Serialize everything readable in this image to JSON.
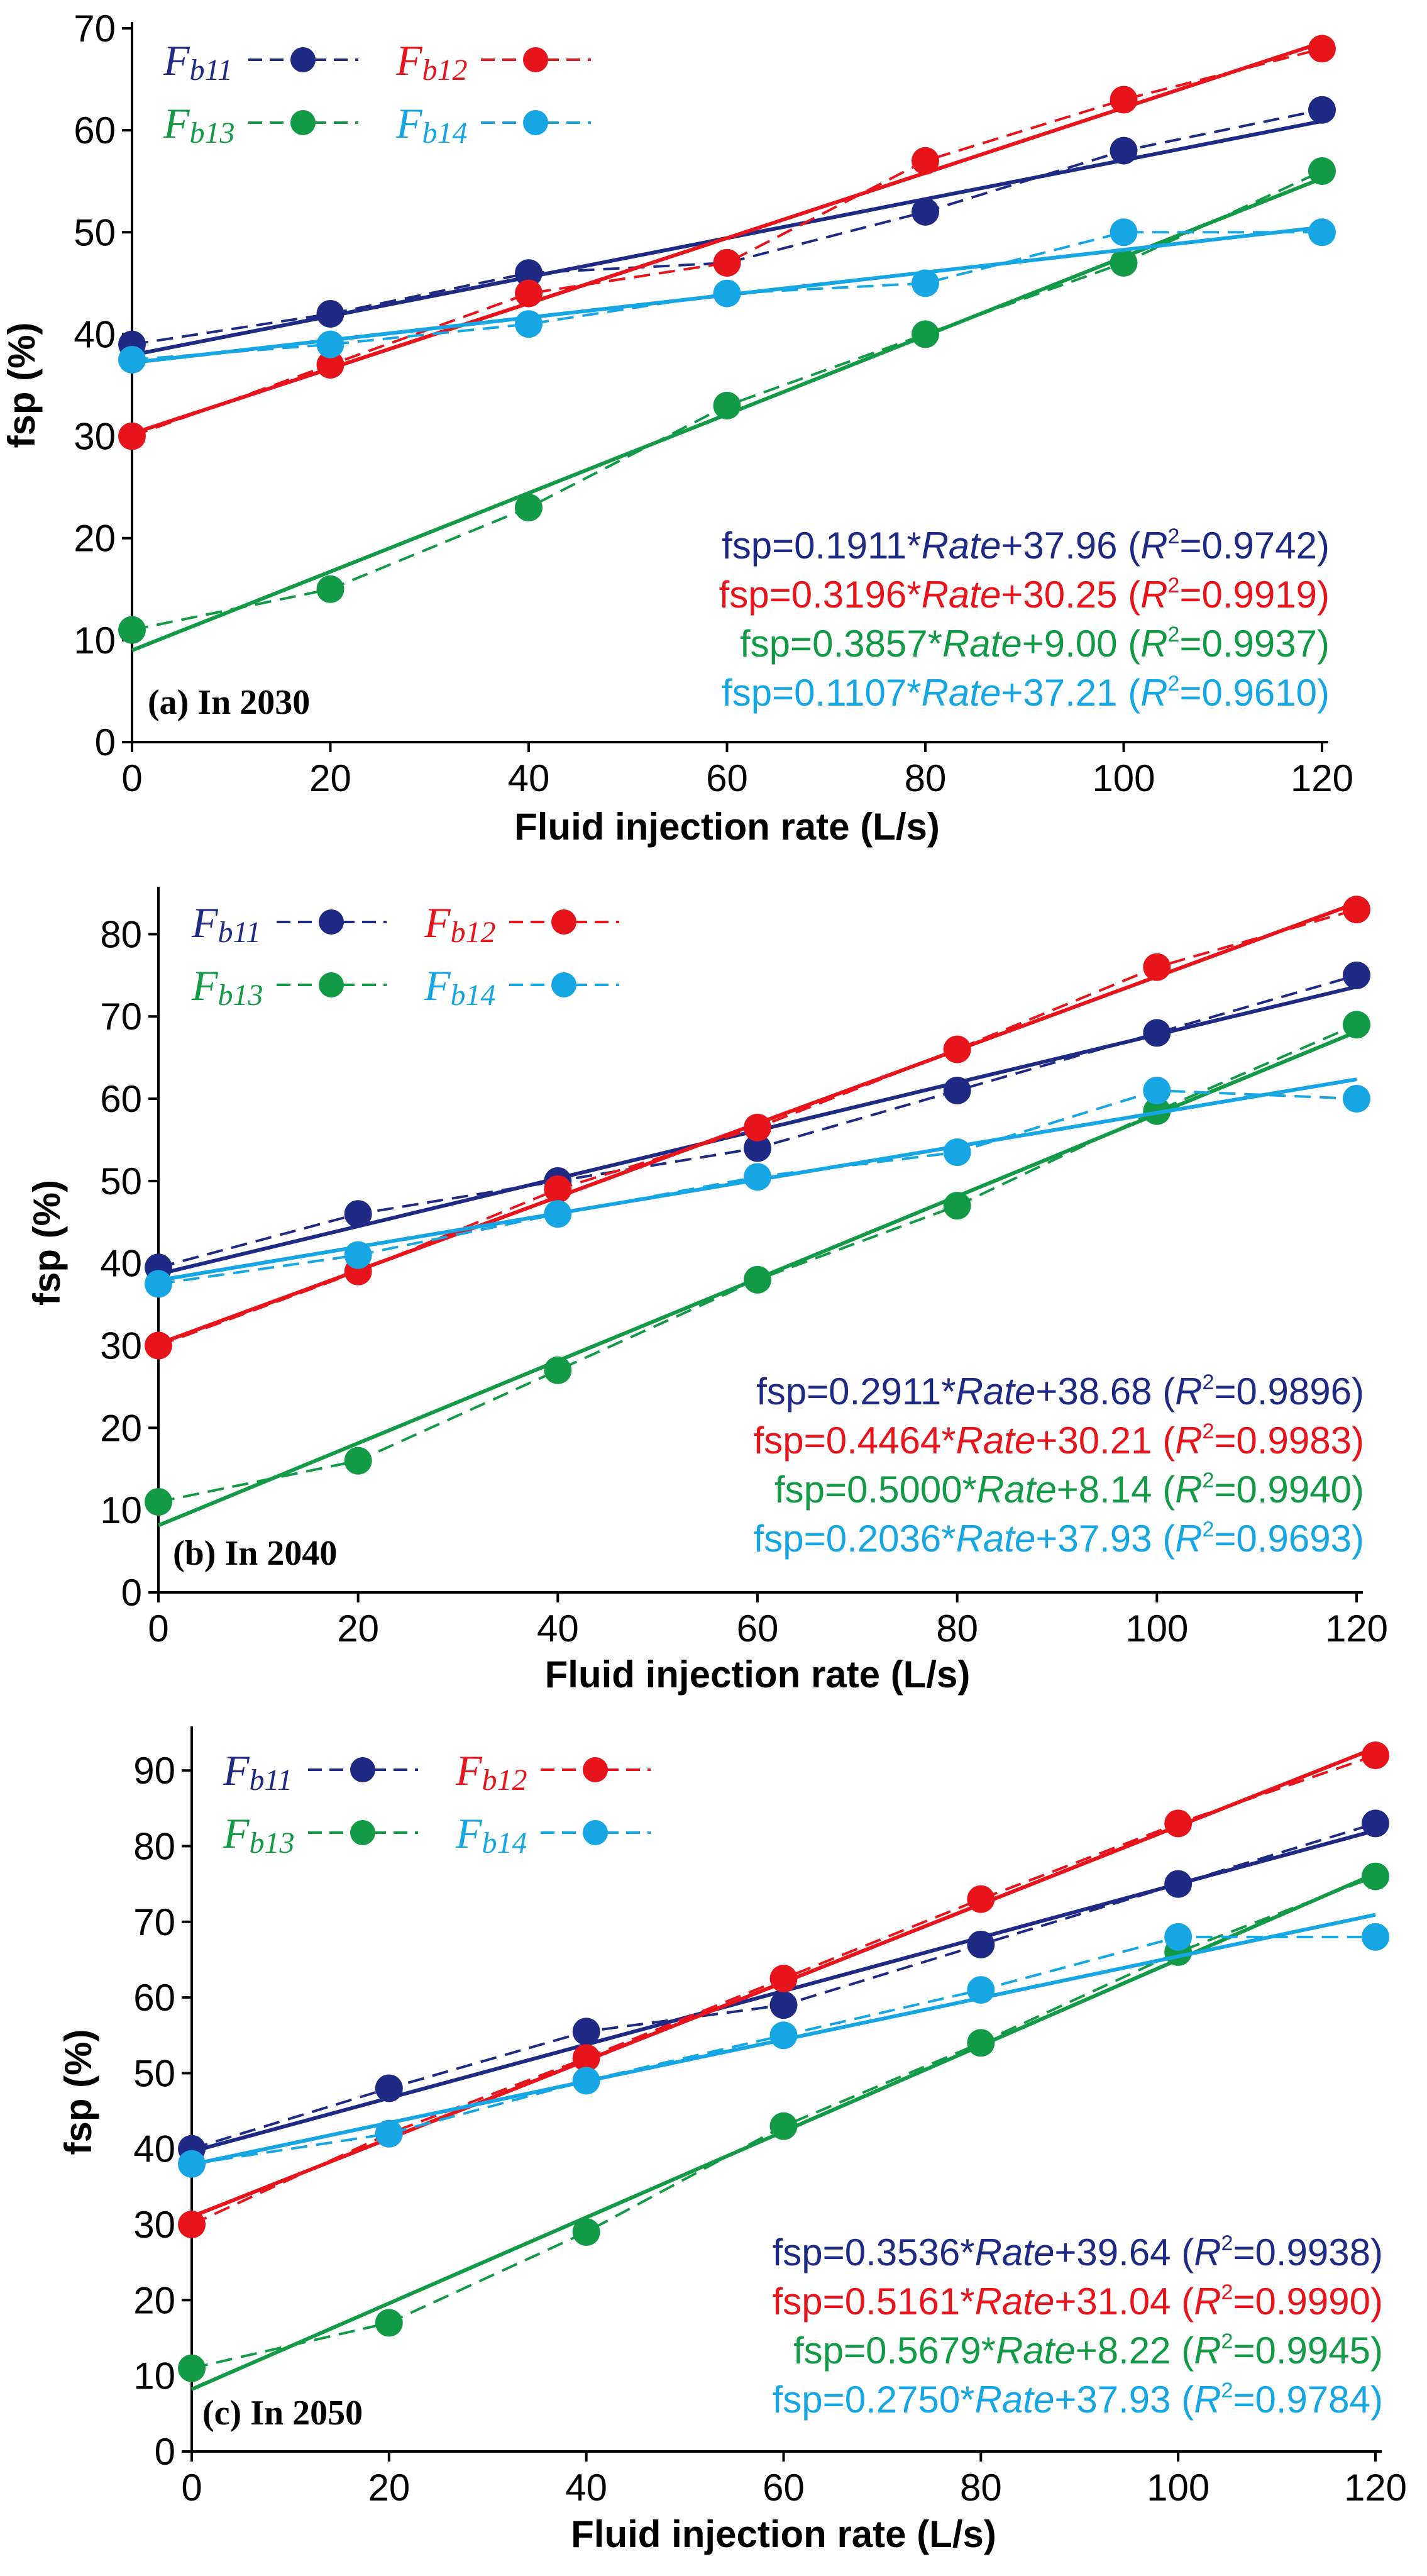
{
  "chart_data": [
    {
      "type": "line",
      "title": "",
      "panel_label": "(a) In 2030",
      "xlabel": "Fluid injection rate (L/s)",
      "ylabel": "fsp (%)",
      "xlim": [
        0,
        120
      ],
      "ylim": [
        0,
        70
      ],
      "x_ticks": [
        0,
        20,
        40,
        60,
        80,
        100,
        120
      ],
      "y_ticks": [
        0,
        10,
        20,
        30,
        40,
        50,
        60,
        70
      ],
      "x": [
        0,
        20,
        40,
        60,
        80,
        100,
        120
      ],
      "series": [
        {
          "name": "Fb11",
          "sub": "b11",
          "color": "#1f2a85",
          "values": [
            39,
            42,
            46,
            47,
            52,
            58,
            62
          ],
          "fit": {
            "slope": 0.1911,
            "intercept": 37.96
          },
          "equation": {
            "slope": "0.1911",
            "intercept": "37.96",
            "r2": "0.9742"
          }
        },
        {
          "name": "Fb12",
          "sub": "b12",
          "color": "#e8141c",
          "values": [
            30,
            37,
            44,
            47,
            57,
            63,
            68
          ],
          "fit": {
            "slope": 0.3196,
            "intercept": 30.25
          },
          "equation": {
            "slope": "0.3196",
            "intercept": "30.25",
            "r2": "0.9919"
          }
        },
        {
          "name": "Fb13",
          "sub": "b13",
          "color": "#139a46",
          "values": [
            11,
            15,
            23,
            33,
            40,
            47,
            56
          ],
          "fit": {
            "slope": 0.3857,
            "intercept": 9.0
          },
          "equation": {
            "slope": "0.3857",
            "intercept": "9.00",
            "r2": "0.9937"
          }
        },
        {
          "name": "Fb14",
          "sub": "b14",
          "color": "#16a6e3",
          "values": [
            37.5,
            39,
            41,
            44,
            45,
            50,
            50
          ],
          "fit": {
            "slope": 0.1107,
            "intercept": 37.21
          },
          "equation": {
            "slope": "0.1107",
            "intercept": "37.21",
            "r2": "0.9610"
          }
        }
      ]
    },
    {
      "type": "line",
      "title": "",
      "panel_label": "(b) In 2040",
      "xlabel": "Fluid injection rate (L/s)",
      "ylabel": "fsp (%)",
      "xlim": [
        0,
        120
      ],
      "ylim": [
        0,
        85
      ],
      "x_ticks": [
        0,
        20,
        40,
        60,
        80,
        100,
        120
      ],
      "y_ticks": [
        0,
        10,
        20,
        30,
        40,
        50,
        60,
        70,
        80
      ],
      "x": [
        0,
        20,
        40,
        60,
        80,
        100,
        120
      ],
      "series": [
        {
          "name": "Fb11",
          "sub": "b11",
          "color": "#1f2a85",
          "values": [
            39.5,
            46,
            50,
            54,
            61,
            68,
            75
          ],
          "fit": {
            "slope": 0.2911,
            "intercept": 38.68
          },
          "equation": {
            "slope": "0.2911",
            "intercept": "38.68",
            "r2": "0.9896"
          }
        },
        {
          "name": "Fb12",
          "sub": "b12",
          "color": "#e8141c",
          "values": [
            30,
            39,
            49,
            56.5,
            66,
            76,
            83
          ],
          "fit": {
            "slope": 0.4464,
            "intercept": 30.21
          },
          "equation": {
            "slope": "0.4464",
            "intercept": "30.21",
            "r2": "0.9983"
          }
        },
        {
          "name": "Fb13",
          "sub": "b13",
          "color": "#139a46",
          "values": [
            11,
            16,
            27,
            38,
            47,
            58.5,
            69
          ],
          "fit": {
            "slope": 0.5,
            "intercept": 8.14
          },
          "equation": {
            "slope": "0.5000",
            "intercept": "8.14",
            "r2": "0.9940"
          }
        },
        {
          "name": "Fb14",
          "sub": "b14",
          "color": "#16a6e3",
          "values": [
            37.5,
            41,
            46,
            50.5,
            53.5,
            61,
            60
          ],
          "fit": {
            "slope": 0.2036,
            "intercept": 37.93
          },
          "equation": {
            "slope": "0.2036",
            "intercept": "37.93",
            "r2": "0.9693"
          }
        }
      ]
    },
    {
      "type": "line",
      "title": "",
      "panel_label": "(c) In 2050",
      "xlabel": "Fluid injection rate (L/s)",
      "ylabel": "fsp (%)",
      "xlim": [
        0,
        120
      ],
      "ylim": [
        0,
        95
      ],
      "x_ticks": [
        0,
        20,
        40,
        60,
        80,
        100,
        120
      ],
      "y_ticks": [
        0,
        10,
        20,
        30,
        40,
        50,
        60,
        70,
        80,
        90
      ],
      "x": [
        0,
        20,
        40,
        60,
        80,
        100,
        120
      ],
      "series": [
        {
          "name": "Fb11",
          "sub": "b11",
          "color": "#1f2a85",
          "values": [
            40,
            48,
            55.5,
            59,
            67,
            75,
            83
          ],
          "fit": {
            "slope": 0.3536,
            "intercept": 39.64
          },
          "equation": {
            "slope": "0.3536",
            "intercept": "39.64",
            "r2": "0.9938"
          }
        },
        {
          "name": "Fb12",
          "sub": "b12",
          "color": "#e8141c",
          "values": [
            30,
            42,
            52,
            62.5,
            73,
            83,
            92
          ],
          "fit": {
            "slope": 0.5161,
            "intercept": 31.04
          },
          "equation": {
            "slope": "0.5161",
            "intercept": "31.04",
            "r2": "0.9990"
          }
        },
        {
          "name": "Fb13",
          "sub": "b13",
          "color": "#139a46",
          "values": [
            11,
            17,
            29,
            43,
            54,
            66,
            76
          ],
          "fit": {
            "slope": 0.5679,
            "intercept": 8.22
          },
          "equation": {
            "slope": "0.5679",
            "intercept": "8.22",
            "r2": "0.9945"
          }
        },
        {
          "name": "Fb14",
          "sub": "b14",
          "color": "#16a6e3",
          "values": [
            38,
            42,
            49,
            55,
            61,
            68,
            68
          ],
          "fit": {
            "slope": 0.275,
            "intercept": 37.93
          },
          "equation": {
            "slope": "0.2750",
            "intercept": "37.93",
            "r2": "0.9784"
          }
        }
      ]
    }
  ]
}
